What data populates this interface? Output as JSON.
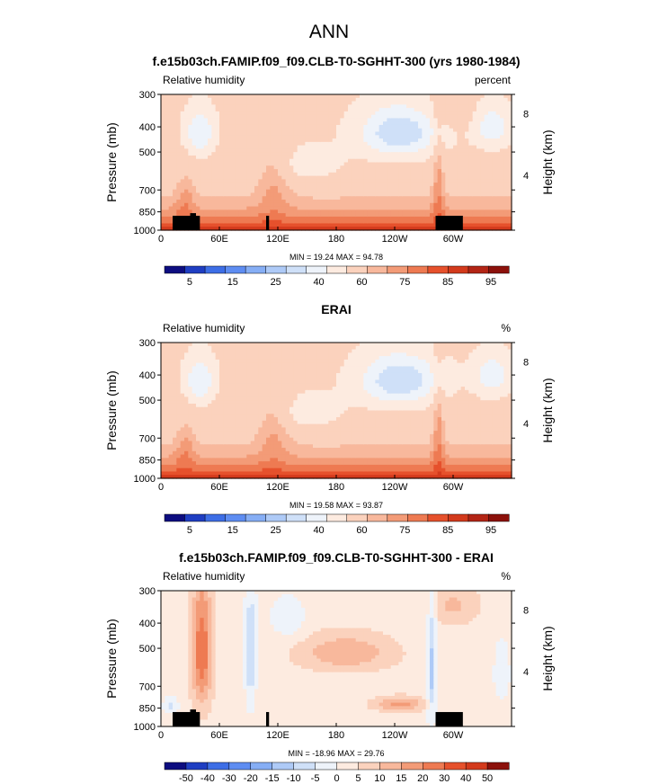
{
  "figure": {
    "title": "ANN"
  },
  "chart_data": [
    {
      "type": "heatmap",
      "title": "f.e15b03ch.FAMIP.f09_f09.CLB-T0-SGHHT-300 (yrs 1980-1984)",
      "left_label": "Relative humidity",
      "right_label": "percent",
      "xlabel": "",
      "ylabel": "Pressure (mb)",
      "y2label": "Height (km)",
      "x_ticks": [
        "0",
        "60E",
        "120E",
        "180",
        "120W",
        "60W"
      ],
      "x_tick_values": [
        0,
        60,
        120,
        180,
        240,
        300
      ],
      "xlim": [
        0,
        360
      ],
      "y_ticks": [
        "300",
        "400",
        "500",
        "700",
        "850",
        "1000"
      ],
      "y_tick_values": [
        300,
        400,
        500,
        700,
        850,
        1000
      ],
      "ylim": [
        1000,
        300
      ],
      "y_scale": "log",
      "y2_ticks": [
        "8",
        "4"
      ],
      "y2_tick_values": [
        8,
        4
      ],
      "stats": "MIN =   19.24   MAX =   94.78",
      "min": 19.24,
      "max": 94.78,
      "colorbar_labels": [
        "5",
        "15",
        "25",
        "40",
        "60",
        "75",
        "85",
        "95"
      ],
      "colorbar_colors": [
        "#0d0d80",
        "#1f3ec2",
        "#3d6ee6",
        "#5e8df2",
        "#86aef5",
        "#aecaf7",
        "#cfe0f8",
        "#eef3fa",
        "#fdebe0",
        "#fbd2bd",
        "#f8b89c",
        "#f39b77",
        "#ee7a52",
        "#e6512c",
        "#d33a1c",
        "#b32515",
        "#8c110b"
      ],
      "variant": "model"
    },
    {
      "type": "heatmap",
      "title": "ERAI",
      "left_label": "Relative humidity",
      "right_label": "%",
      "xlabel": "",
      "ylabel": "Pressure (mb)",
      "y2label": "Height (km)",
      "x_ticks": [
        "0",
        "60E",
        "120E",
        "180",
        "120W",
        "60W"
      ],
      "x_tick_values": [
        0,
        60,
        120,
        180,
        240,
        300
      ],
      "xlim": [
        0,
        360
      ],
      "y_ticks": [
        "300",
        "400",
        "500",
        "700",
        "850",
        "1000"
      ],
      "y_tick_values": [
        300,
        400,
        500,
        700,
        850,
        1000
      ],
      "ylim": [
        1000,
        300
      ],
      "y_scale": "log",
      "y2_ticks": [
        "8",
        "4"
      ],
      "y2_tick_values": [
        8,
        4
      ],
      "stats": "MIN =   19.58   MAX =   93.87",
      "min": 19.58,
      "max": 93.87,
      "colorbar_labels": [
        "5",
        "15",
        "25",
        "40",
        "60",
        "75",
        "85",
        "95"
      ],
      "colorbar_colors": [
        "#0d0d80",
        "#1f3ec2",
        "#3d6ee6",
        "#5e8df2",
        "#86aef5",
        "#aecaf7",
        "#cfe0f8",
        "#eef3fa",
        "#fdebe0",
        "#fbd2bd",
        "#f8b89c",
        "#f39b77",
        "#ee7a52",
        "#e6512c",
        "#d33a1c",
        "#b32515",
        "#8c110b"
      ],
      "variant": "obs"
    },
    {
      "type": "heatmap",
      "title": "f.e15b03ch.FAMIP.f09_f09.CLB-T0-SGHHT-300 - ERAI",
      "left_label": "Relative humidity",
      "right_label": "%",
      "xlabel": "",
      "ylabel": "Pressure (mb)",
      "y2label": "Height (km)",
      "x_ticks": [
        "0",
        "60E",
        "120E",
        "180",
        "120W",
        "60W"
      ],
      "x_tick_values": [
        0,
        60,
        120,
        180,
        240,
        300
      ],
      "xlim": [
        0,
        360
      ],
      "y_ticks": [
        "300",
        "400",
        "500",
        "700",
        "850",
        "1000"
      ],
      "y_tick_values": [
        300,
        400,
        500,
        700,
        850,
        1000
      ],
      "ylim": [
        1000,
        300
      ],
      "y_scale": "log",
      "y2_ticks": [
        "8",
        "4"
      ],
      "y2_tick_values": [
        8,
        4
      ],
      "stats": "MIN =  -18.96   MAX =   29.76",
      "min": -18.96,
      "max": 29.76,
      "colorbar_labels": [
        "-50",
        "-40",
        "-30",
        "-20",
        "-15",
        "-10",
        "-5",
        "0",
        "5",
        "10",
        "15",
        "20",
        "30",
        "40",
        "50"
      ],
      "colorbar_colors": [
        "#0d0d80",
        "#1f3ec2",
        "#3d6ee6",
        "#5e8df2",
        "#86aef5",
        "#aecaf7",
        "#cfe0f8",
        "#eef3fa",
        "#fdebe0",
        "#fbd2bd",
        "#f8b89c",
        "#f39b77",
        "#ee7a52",
        "#e6512c",
        "#d33a1c",
        "#8c110b"
      ],
      "variant": "diff"
    }
  ]
}
